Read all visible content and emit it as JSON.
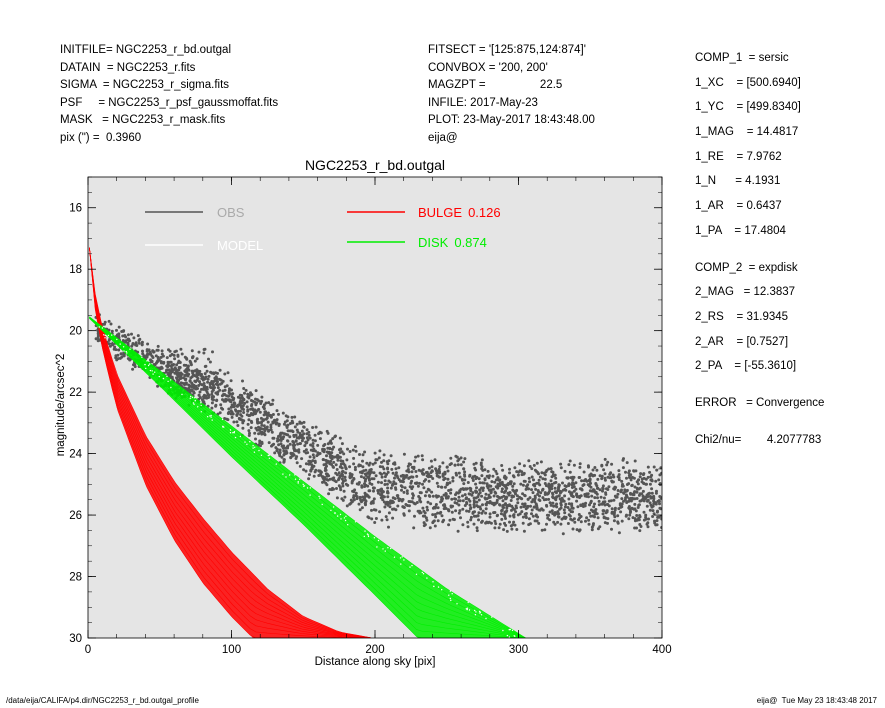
{
  "header_left": [
    "INITFILE= NGC2253_r_bd.outgal",
    "DATAIN  = NGC2253_r.fits",
    "SIGMA  = NGC2253_r_sigma.fits",
    "PSF     = NGC2253_r_psf_gaussmoffat.fits",
    "MASK   = NGC2253_r_mask.fits",
    "pix (\") =  0.3960"
  ],
  "header_mid": [
    "FITSECT = '[125:875,124:874]'",
    "CONVBOX = '200, 200'",
    "MAGZPT =                 22.5",
    "INFILE: 2017-May-23",
    "PLOT: 23-May-2017 18:43:48.00",
    "eija@"
  ],
  "header_right": [
    "COMP_1  = sersic",
    "1_XC    = [500.6940]",
    "1_YC    = [499.8340]",
    "1_MAG    = 14.4817",
    "1_RE    = 7.9762",
    "1_N      = 4.1931",
    "1_AR    = 0.6437",
    "1_PA    = 17.4804",
    "COMP_2  = expdisk",
    "2_MAG   = 12.3837",
    "2_RS    = 31.9345",
    "2_AR    = [0.7527]",
    "2_PA    = [-55.3610]",
    "ERROR   = Convergence",
    "Chi2/nu=        4.2077783"
  ],
  "footer_left": "/data/eija/CALIFA/p4.dir/NGC2253_r_bd.outgal_profile",
  "footer_right": "eija@  Tue May 23 18:43:48 2017",
  "chart_data": {
    "type": "scatter",
    "title": "NGC2253_r_bd.outgal",
    "xlabel": "Distance along sky [pix]",
    "ylabel": "magnitude/arcsec^2",
    "xlim": [
      0,
      400
    ],
    "ylim": [
      30,
      15
    ],
    "y_inverted": true,
    "xticks": [
      0,
      100,
      200,
      300,
      400
    ],
    "yticks": [
      16,
      18,
      20,
      22,
      24,
      26,
      28,
      30
    ],
    "grid": false,
    "background": "#e5e5e5",
    "series": [
      {
        "name": "OBS",
        "color": "#555555",
        "legend_text_color": "#aaaaaa",
        "profile": [
          [
            5,
            19.8
          ],
          [
            10,
            20.1
          ],
          [
            20,
            20.4
          ],
          [
            40,
            20.9
          ],
          [
            60,
            21.5
          ],
          [
            80,
            21.8
          ],
          [
            100,
            22.3
          ],
          [
            120,
            22.9
          ],
          [
            140,
            23.5
          ],
          [
            160,
            24.1
          ],
          [
            180,
            24.7
          ],
          [
            200,
            25.1
          ],
          [
            220,
            25.2
          ],
          [
            250,
            25.3
          ],
          [
            300,
            25.4
          ],
          [
            350,
            25.4
          ],
          [
            400,
            25.4
          ]
        ]
      },
      {
        "name": "MODEL",
        "color": "#ffffff",
        "legend_text_color": "#ffffff"
      },
      {
        "name": "BULGE",
        "value": "0.126",
        "color": "#ff0000",
        "profile_upper": [
          [
            1,
            17.3
          ],
          [
            5,
            18.8
          ],
          [
            10,
            19.9
          ],
          [
            20,
            21.4
          ],
          [
            40,
            23.4
          ],
          [
            60,
            24.9
          ],
          [
            80,
            26.1
          ],
          [
            100,
            27.2
          ],
          [
            125,
            28.4
          ],
          [
            150,
            29.3
          ],
          [
            175,
            29.8
          ],
          [
            198,
            30.0
          ]
        ],
        "profile_lower": [
          [
            1,
            17.3
          ],
          [
            5,
            19.3
          ],
          [
            10,
            20.6
          ],
          [
            20,
            22.5
          ],
          [
            40,
            25.0
          ],
          [
            60,
            26.8
          ],
          [
            80,
            28.2
          ],
          [
            100,
            29.3
          ],
          [
            115,
            30.0
          ]
        ]
      },
      {
        "name": "DISK",
        "value": "0.874",
        "color": "#00ee00",
        "profile_upper": [
          [
            1,
            19.55
          ],
          [
            50,
            21.3
          ],
          [
            100,
            23.1
          ],
          [
            150,
            24.9
          ],
          [
            200,
            26.7
          ],
          [
            250,
            28.4
          ],
          [
            305,
            30.0
          ]
        ],
        "profile_lower": [
          [
            1,
            19.6
          ],
          [
            50,
            21.8
          ],
          [
            100,
            24.1
          ],
          [
            150,
            26.3
          ],
          [
            200,
            28.6
          ],
          [
            230,
            30.0
          ]
        ]
      }
    ]
  }
}
